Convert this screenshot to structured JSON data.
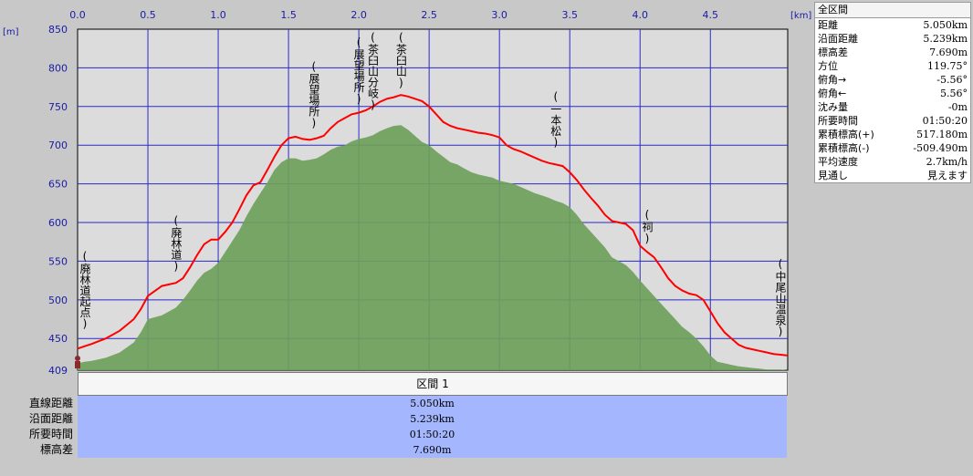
{
  "chart_data": {
    "type": "area",
    "x_unit": "[km]",
    "y_unit": "[m]",
    "xlim": [
      0,
      5.05
    ],
    "ylim": [
      409,
      850
    ],
    "x_ticks": [
      "0.0",
      "0.5",
      "1.0",
      "1.5",
      "2.0",
      "2.5",
      "3.0",
      "3.5",
      "4.0",
      "4.5"
    ],
    "y_ticks": [
      "850",
      "800",
      "750",
      "700",
      "650",
      "600",
      "550",
      "500",
      "450",
      "409"
    ],
    "grid": true,
    "series": [
      {
        "color": "#ff0000",
        "x": [
          0,
          0.05,
          0.1,
          0.2,
          0.3,
          0.4,
          0.45,
          0.5,
          0.6,
          0.7,
          0.75,
          0.8,
          0.85,
          0.9,
          0.95,
          1.0,
          1.05,
          1.1,
          1.15,
          1.2,
          1.25,
          1.3,
          1.35,
          1.4,
          1.45,
          1.5,
          1.55,
          1.6,
          1.65,
          1.7,
          1.75,
          1.8,
          1.85,
          1.9,
          1.95,
          2.0,
          2.05,
          2.1,
          2.15,
          2.2,
          2.25,
          2.3,
          2.35,
          2.4,
          2.45,
          2.5,
          2.55,
          2.6,
          2.65,
          2.7,
          2.75,
          2.8,
          2.85,
          2.9,
          2.95,
          3.0,
          3.05,
          3.1,
          3.15,
          3.2,
          3.25,
          3.3,
          3.35,
          3.4,
          3.45,
          3.5,
          3.55,
          3.6,
          3.65,
          3.7,
          3.75,
          3.8,
          3.85,
          3.9,
          3.95,
          4.0,
          4.05,
          4.1,
          4.15,
          4.2,
          4.25,
          4.3,
          4.35,
          4.4,
          4.45,
          4.5,
          4.55,
          4.6,
          4.65,
          4.7,
          4.75,
          4.8,
          4.85,
          4.9,
          4.95,
          5.0,
          5.05
        ],
        "values": [
          437,
          440,
          443,
          450,
          460,
          475,
          488,
          505,
          518,
          522,
          528,
          542,
          558,
          572,
          578,
          578,
          588,
          600,
          617,
          635,
          648,
          652,
          668,
          685,
          700,
          709,
          711,
          708,
          707,
          709,
          712,
          722,
          730,
          735,
          740,
          742,
          745,
          750,
          756,
          760,
          762,
          765,
          763,
          760,
          757,
          750,
          740,
          730,
          725,
          722,
          720,
          718,
          716,
          715,
          713,
          710,
          700,
          695,
          692,
          688,
          684,
          680,
          677,
          675,
          673,
          665,
          655,
          643,
          632,
          622,
          610,
          602,
          600,
          598,
          590,
          570,
          562,
          555,
          542,
          528,
          518,
          512,
          508,
          506,
          500,
          485,
          470,
          458,
          450,
          442,
          438,
          436,
          434,
          432,
          430,
          429,
          428
        ]
      },
      {
        "color": "#6e9f5a",
        "x": [
          0,
          0.05,
          0.1,
          0.2,
          0.3,
          0.4,
          0.45,
          0.5,
          0.6,
          0.7,
          0.75,
          0.8,
          0.85,
          0.9,
          0.95,
          1.0,
          1.05,
          1.1,
          1.15,
          1.2,
          1.25,
          1.3,
          1.35,
          1.4,
          1.45,
          1.5,
          1.55,
          1.6,
          1.65,
          1.7,
          1.75,
          1.8,
          1.85,
          1.9,
          1.95,
          2.0,
          2.05,
          2.1,
          2.15,
          2.2,
          2.25,
          2.3,
          2.35,
          2.4,
          2.45,
          2.5,
          2.55,
          2.6,
          2.65,
          2.7,
          2.75,
          2.8,
          2.85,
          2.9,
          2.95,
          3.0,
          3.05,
          3.1,
          3.15,
          3.2,
          3.25,
          3.3,
          3.35,
          3.4,
          3.45,
          3.5,
          3.55,
          3.6,
          3.65,
          3.7,
          3.75,
          3.8,
          3.85,
          3.9,
          3.95,
          4.0,
          4.05,
          4.1,
          4.15,
          4.2,
          4.25,
          4.3,
          4.35,
          4.4,
          4.45,
          4.5,
          4.55,
          4.6,
          4.65,
          4.7,
          4.75,
          4.8,
          4.85,
          4.9,
          4.95,
          5.0,
          5.05
        ],
        "values": [
          418,
          420,
          421,
          425,
          432,
          445,
          458,
          475,
          480,
          490,
          500,
          512,
          525,
          535,
          540,
          548,
          562,
          576,
          590,
          608,
          624,
          638,
          652,
          668,
          678,
          683,
          683,
          680,
          681,
          683,
          688,
          694,
          698,
          700,
          705,
          708,
          710,
          713,
          718,
          722,
          725,
          726,
          720,
          712,
          704,
          700,
          692,
          685,
          678,
          675,
          670,
          665,
          662,
          660,
          658,
          654,
          652,
          650,
          646,
          642,
          638,
          635,
          632,
          628,
          625,
          620,
          610,
          598,
          588,
          578,
          568,
          555,
          550,
          545,
          536,
          525,
          515,
          505,
          495,
          485,
          475,
          465,
          458,
          450,
          440,
          428,
          420,
          418,
          416,
          414,
          413,
          412,
          411,
          410,
          410,
          410,
          409
        ]
      }
    ],
    "annotations": [
      {
        "text": "(廃林道起点)",
        "x": 0.0,
        "y": 450
      },
      {
        "text": "(廃林道)",
        "x": 0.7,
        "y": 527
      },
      {
        "text": "(展望場所)",
        "x": 1.68,
        "y": 711
      },
      {
        "text": "(展望場所)",
        "x": 2.0,
        "y": 742
      },
      {
        "text": "(茶臼山分岐)",
        "x": 2.1,
        "y": 750
      },
      {
        "text": "(茶臼山)",
        "x": 2.3,
        "y": 765
      },
      {
        "text": "(一本松)",
        "x": 3.4,
        "y": 687
      },
      {
        "text": "(祠)",
        "x": 4.05,
        "y": 565
      },
      {
        "text": "(中尾山温泉)",
        "x": 5.0,
        "y": 440
      }
    ]
  },
  "summary": {
    "title": "全区間",
    "rows": [
      {
        "label": "距離",
        "value": "5.050km"
      },
      {
        "label": "沿面距離",
        "value": "5.239km"
      },
      {
        "label": "標高差",
        "value": "7.690m"
      },
      {
        "label": "方位",
        "value": "119.75°"
      },
      {
        "label": "俯角→",
        "value": "-5.56°"
      },
      {
        "label": "俯角←",
        "value": "5.56°"
      },
      {
        "label": "沈み量",
        "value": "-0m"
      },
      {
        "label": "所要時間",
        "value": "01:50:20"
      },
      {
        "label": "累積標高(+)",
        "value": "517.180m"
      },
      {
        "label": "累積標高(-)",
        "value": "-509.490m"
      },
      {
        "label": "平均速度",
        "value": "2.7km/h"
      },
      {
        "label": "見通し",
        "value": "見えます"
      }
    ]
  },
  "interval": {
    "title": "区間 1",
    "rows": [
      {
        "label": "直線距離",
        "value": "5.050km"
      },
      {
        "label": "沿面距離",
        "value": "5.239km"
      },
      {
        "label": "所要時間",
        "value": "01:50:20"
      },
      {
        "label": "標高差",
        "value": "7.690m"
      }
    ]
  }
}
